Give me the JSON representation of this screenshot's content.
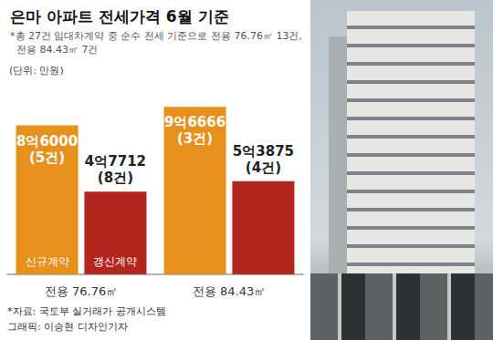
{
  "chart_data": {
    "type": "bar",
    "title": "은마 아파트 전세가격 6월 기준",
    "subtitle": "*총 27건 임대차계약 중 순수 전세 기준으로 전용 76.76㎡ 13건,\n  전용 84.43㎡ 7건",
    "annotations": [
      "(단위: 만원)",
      "*자료: 국토부 실거래가 공개시스템",
      "그래픽: 이승현 디자인기자"
    ],
    "categories": [
      "전용 76.76㎡",
      "전용 84.43㎡"
    ],
    "series": [
      {
        "name": "신규계약",
        "color": "#e8901c",
        "values": [
          86000,
          96666
        ],
        "value_labels": [
          "8억6000\n(5건)",
          "9억6666\n(3건)"
        ]
      },
      {
        "name": "갱신계약",
        "color": "#b3261e",
        "values": [
          47712,
          53875
        ],
        "value_labels": [
          "4억7712\n(8건)",
          "5억3875\n(4건)"
        ]
      }
    ],
    "ylim": [
      0,
      110000
    ],
    "grid": false,
    "data_labels": true,
    "tick_labels": "x"
  }
}
